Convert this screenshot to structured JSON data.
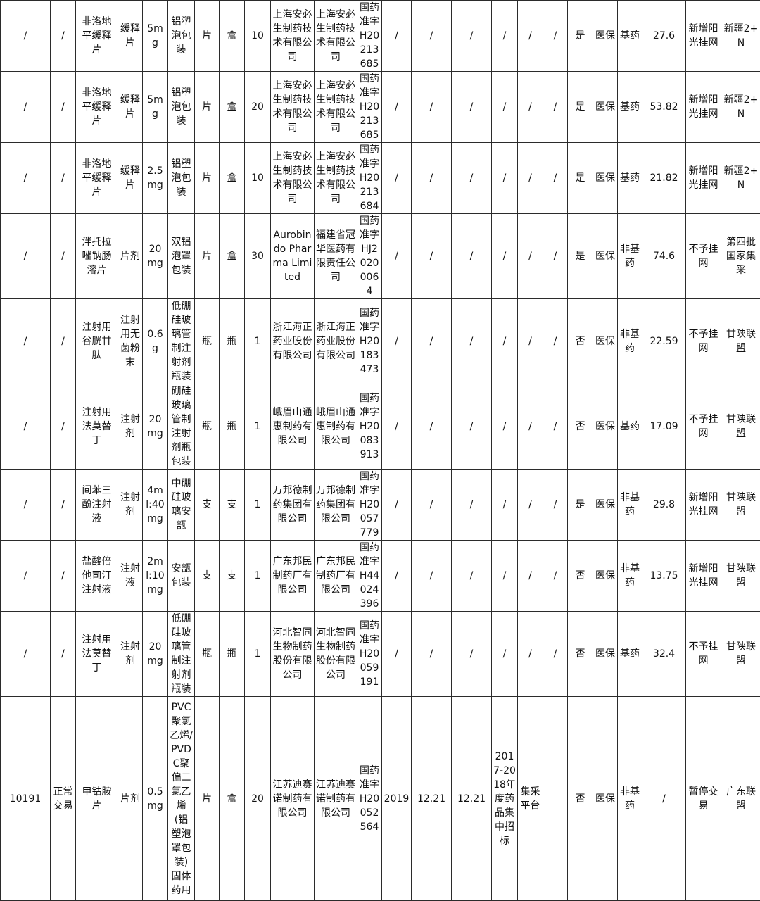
{
  "table": {
    "rows": [
      [
        "/",
        "/",
        "非洛地平缓释片",
        "缓释片",
        "5mg",
        "铝塑泡包装",
        "片",
        "盒",
        "10",
        "上海安必生制药技术有限公司",
        "上海安必生制药技术有限公司",
        "国药准字H20213685",
        "/",
        "/",
        "/",
        "/",
        "/",
        "/",
        "是",
        "医保",
        "基药",
        "27.6",
        "新增阳光挂网",
        "新疆2+N"
      ],
      [
        "/",
        "/",
        "非洛地平缓释片",
        "缓释片",
        "5mg",
        "铝塑泡包装",
        "片",
        "盒",
        "20",
        "上海安必生制药技术有限公司",
        "上海安必生制药技术有限公司",
        "国药准字H20213685",
        "/",
        "/",
        "/",
        "/",
        "/",
        "/",
        "是",
        "医保",
        "基药",
        "53.82",
        "新增阳光挂网",
        "新疆2+N"
      ],
      [
        "/",
        "/",
        "非洛地平缓释片",
        "缓释片",
        "2.5mg",
        "铝塑泡包装",
        "片",
        "盒",
        "10",
        "上海安必生制药技术有限公司",
        "上海安必生制药技术有限公司",
        "国药准字H20213684",
        "/",
        "/",
        "/",
        "/",
        "/",
        "/",
        "是",
        "医保",
        "基药",
        "21.82",
        "新增阳光挂网",
        "新疆2+N"
      ],
      [
        "/",
        "/",
        "泮托拉唑钠肠溶片",
        "片剂",
        "20mg",
        "双铝泡罩包装",
        "片",
        "盒",
        "30",
        "Aurobindo Pharma Limited",
        "福建省冠华医药有限责任公司",
        "国药准字HJ20200064",
        "/",
        "/",
        "/",
        "/",
        "/",
        "/",
        "是",
        "医保",
        "非基药",
        "74.6",
        "不予挂网",
        "第四批国家集采"
      ],
      [
        "/",
        "/",
        "注射用谷胱甘肽",
        "注射用无菌粉末",
        "0.6g",
        "低硼硅玻璃管制注射剂瓶装",
        "瓶",
        "瓶",
        "1",
        "浙江海正药业股份有限公司",
        "浙江海正药业股份有限公司",
        "国药准字H20183473",
        "/",
        "/",
        "/",
        "/",
        "/",
        "/",
        "否",
        "医保",
        "非基药",
        "22.59",
        "不予挂网",
        "甘陕联盟"
      ],
      [
        "/",
        "/",
        "注射用法莫替丁",
        "注射剂",
        "20mg",
        "硼硅玻璃管制注射剂瓶包装",
        "瓶",
        "瓶",
        "1",
        "峨眉山通惠制药有限公司",
        "峨眉山通惠制药有限公司",
        "国药准字H20083913",
        "/",
        "/",
        "/",
        "/",
        "/",
        "/",
        "否",
        "医保",
        "基药",
        "17.09",
        "不予挂网",
        "甘陕联盟"
      ],
      [
        "/",
        "/",
        "间苯三酚注射液",
        "注射剂",
        "4ml:40mg",
        "中硼硅玻璃安瓿",
        "支",
        "支",
        "1",
        "万邦德制药集团有限公司",
        "万邦德制药集团有限公司",
        "国药准字H20057779",
        "/",
        "/",
        "/",
        "/",
        "/",
        "/",
        "是",
        "医保",
        "非基药",
        "29.8",
        "新增阳光挂网",
        "甘陕联盟"
      ],
      [
        "/",
        "/",
        "盐酸倍他司汀注射液",
        "注射液",
        "2ml:10mg",
        "安瓿包装",
        "支",
        "支",
        "1",
        "广东邦民制药厂有限公司",
        "广东邦民制药厂有限公司",
        "国药准字H44024396",
        "/",
        "/",
        "/",
        "/",
        "/",
        "/",
        "否",
        "医保",
        "非基药",
        "13.75",
        "新增阳光挂网",
        "甘陕联盟"
      ],
      [
        "/",
        "/",
        "注射用法莫替丁",
        "注射剂",
        "20mg",
        "低硼硅玻璃管制注射剂瓶装",
        "瓶",
        "瓶",
        "1",
        "河北智同生物制药股份有限公司",
        "河北智同生物制药股份有限公司",
        "国药准字H20059191",
        "/",
        "/",
        "/",
        "/",
        "/",
        "/",
        "否",
        "医保",
        "基药",
        "32.4",
        "不予挂网",
        "甘陕联盟"
      ],
      [
        "10191",
        "正常交易",
        "甲钴胺片",
        "片剂",
        "0.5mg",
        "PVC聚氯乙烯/PVDC聚偏二氯乙烯(铝塑泡罩包装)固体药用",
        "片",
        "盒",
        "20",
        "江苏迪赛诺制药有限公司",
        "江苏迪赛诺制药有限公司",
        "国药准字H20052564",
        "2019",
        "12.21",
        "12.21",
        "2017-2018年度药品集中招标",
        "集采平台",
        "",
        "否",
        "医保",
        "非基药",
        "/",
        "暂停交易",
        "广东联盟"
      ]
    ]
  }
}
